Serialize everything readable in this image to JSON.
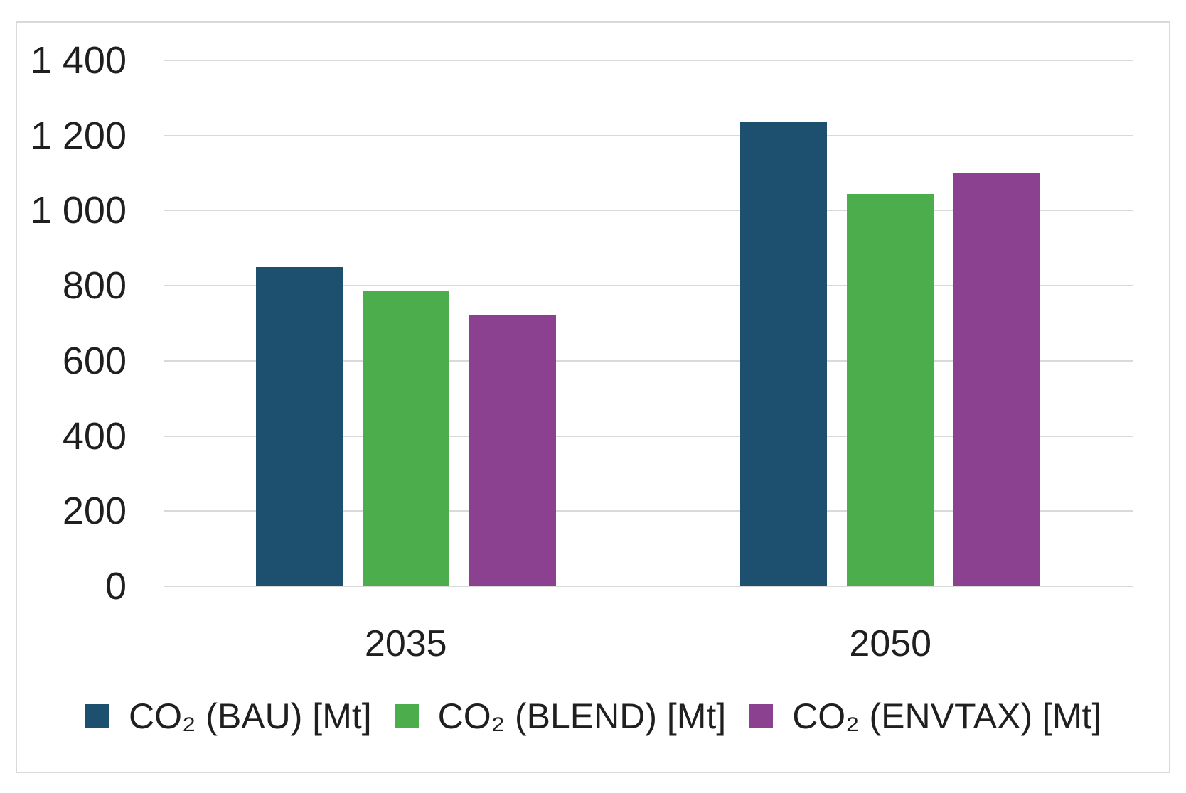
{
  "colors": {
    "grid": "#D9D9D9",
    "frame_border": "#D9D9D9",
    "text": "#1f1f1f",
    "series_bau": "#1C506E",
    "series_blend": "#4CAD4D",
    "series_envtax": "#8B4190"
  },
  "chart_data": {
    "type": "bar",
    "title": "",
    "xlabel": "",
    "ylabel": "",
    "categories": [
      "2035",
      "2050"
    ],
    "series": [
      {
        "name": "CO₂ (BAU) [Mt]",
        "key": "bau",
        "color": "#1C506E",
        "values": [
          850,
          1235
        ]
      },
      {
        "name": "CO₂ (BLEND) [Mt]",
        "key": "blend",
        "color": "#4CAD4D",
        "values": [
          785,
          1045
        ]
      },
      {
        "name": "CO₂ (ENVTAX) [Mt]",
        "key": "envtax",
        "color": "#8B4190",
        "values": [
          720,
          1100
        ]
      }
    ],
    "ylim": [
      0,
      1400
    ],
    "ytick_step": 200,
    "ytick_labels": [
      "0",
      "200",
      "400",
      "600",
      "800",
      "1 000",
      "1 200",
      "1 400"
    ],
    "grid": true,
    "legend_position": "bottom"
  }
}
